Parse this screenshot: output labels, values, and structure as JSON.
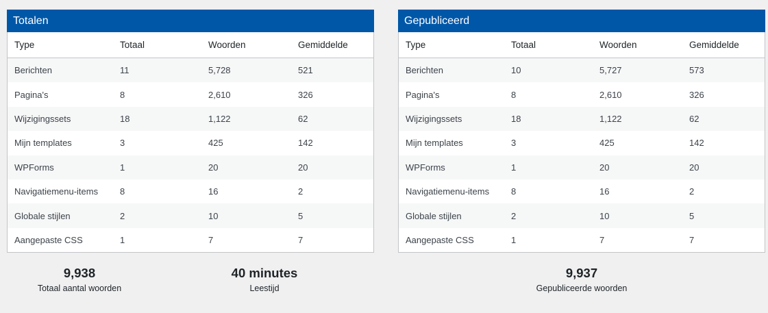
{
  "totals": {
    "title": "Totalen",
    "columns": [
      "Type",
      "Totaal",
      "Woorden",
      "Gemiddelde"
    ],
    "rows": [
      [
        "Berichten",
        "11",
        "5,728",
        "521"
      ],
      [
        "Pagina's",
        "8",
        "2,610",
        "326"
      ],
      [
        "Wijzigingssets",
        "18",
        "1,122",
        "62"
      ],
      [
        "Mijn templates",
        "3",
        "425",
        "142"
      ],
      [
        "WPForms",
        "1",
        "20",
        "20"
      ],
      [
        "Navigatiemenu-items",
        "8",
        "16",
        "2"
      ],
      [
        "Globale stijlen",
        "2",
        "10",
        "5"
      ],
      [
        "Aangepaste CSS",
        "1",
        "7",
        "7"
      ]
    ]
  },
  "published": {
    "title": "Gepubliceerd",
    "columns": [
      "Type",
      "Totaal",
      "Woorden",
      "Gemiddelde"
    ],
    "rows": [
      [
        "Berichten",
        "10",
        "5,727",
        "573"
      ],
      [
        "Pagina's",
        "8",
        "2,610",
        "326"
      ],
      [
        "Wijzigingssets",
        "18",
        "1,122",
        "62"
      ],
      [
        "Mijn templates",
        "3",
        "425",
        "142"
      ],
      [
        "WPForms",
        "1",
        "20",
        "20"
      ],
      [
        "Navigatiemenu-items",
        "8",
        "16",
        "2"
      ],
      [
        "Globale stijlen",
        "2",
        "10",
        "5"
      ],
      [
        "Aangepaste CSS",
        "1",
        "7",
        "7"
      ]
    ]
  },
  "summary": {
    "total_words": {
      "value": "9,938",
      "label": "Totaal aantal woorden"
    },
    "reading_time": {
      "value": "40 minutes",
      "label": "Leestijd"
    },
    "published_words": {
      "value": "9,937",
      "label": "Gepubliceerde woorden"
    }
  },
  "colors": {
    "header_bg": "#0057a8",
    "page_bg": "#f0f0f1",
    "stripe": "#f6f7f7"
  }
}
